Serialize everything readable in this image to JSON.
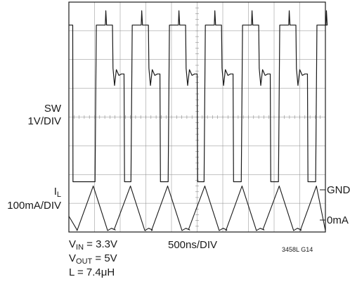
{
  "chart_data": {
    "type": "line",
    "title": "",
    "x_scale_label": "500ns/DIV",
    "grid": true,
    "grid_divisions": {
      "horizontal": 10,
      "vertical": 8
    },
    "channels": [
      {
        "name_main": "SW",
        "name_sub": "",
        "scale": "1V/DIV",
        "marker": "GND"
      },
      {
        "name_main": "I",
        "name_sub": "L",
        "scale": "100mA/DIV",
        "marker": "0mA"
      }
    ],
    "period_divisions": 1.4,
    "series": [
      {
        "name": "SW",
        "x_units": "div",
        "y_units": "div",
        "waveform": {
          "high": 7.2,
          "low": 1.75,
          "duty_high": 0.45,
          "overshoot": 0.5,
          "ring_dip": 0.6
        }
      },
      {
        "name": "IL",
        "x_units": "div",
        "y_units": "div",
        "waveform": {
          "peak": 1.6,
          "floor": 0.05,
          "rise_fraction": 0.45,
          "fall_fraction": 0.4
        }
      }
    ],
    "conditions": [
      {
        "main": "V",
        "sub": "IN",
        "rest": " = 3.3V"
      },
      {
        "main": "V",
        "sub": "OUT",
        "rest": " = 5V"
      },
      {
        "main": "L = 7.4μH",
        "sub": "",
        "rest": ""
      }
    ],
    "figure_id": "3458L G14"
  },
  "colors": {
    "trace": "#1a1a1a",
    "grid": "#8a8a8a",
    "border": "#1a1a1a"
  }
}
